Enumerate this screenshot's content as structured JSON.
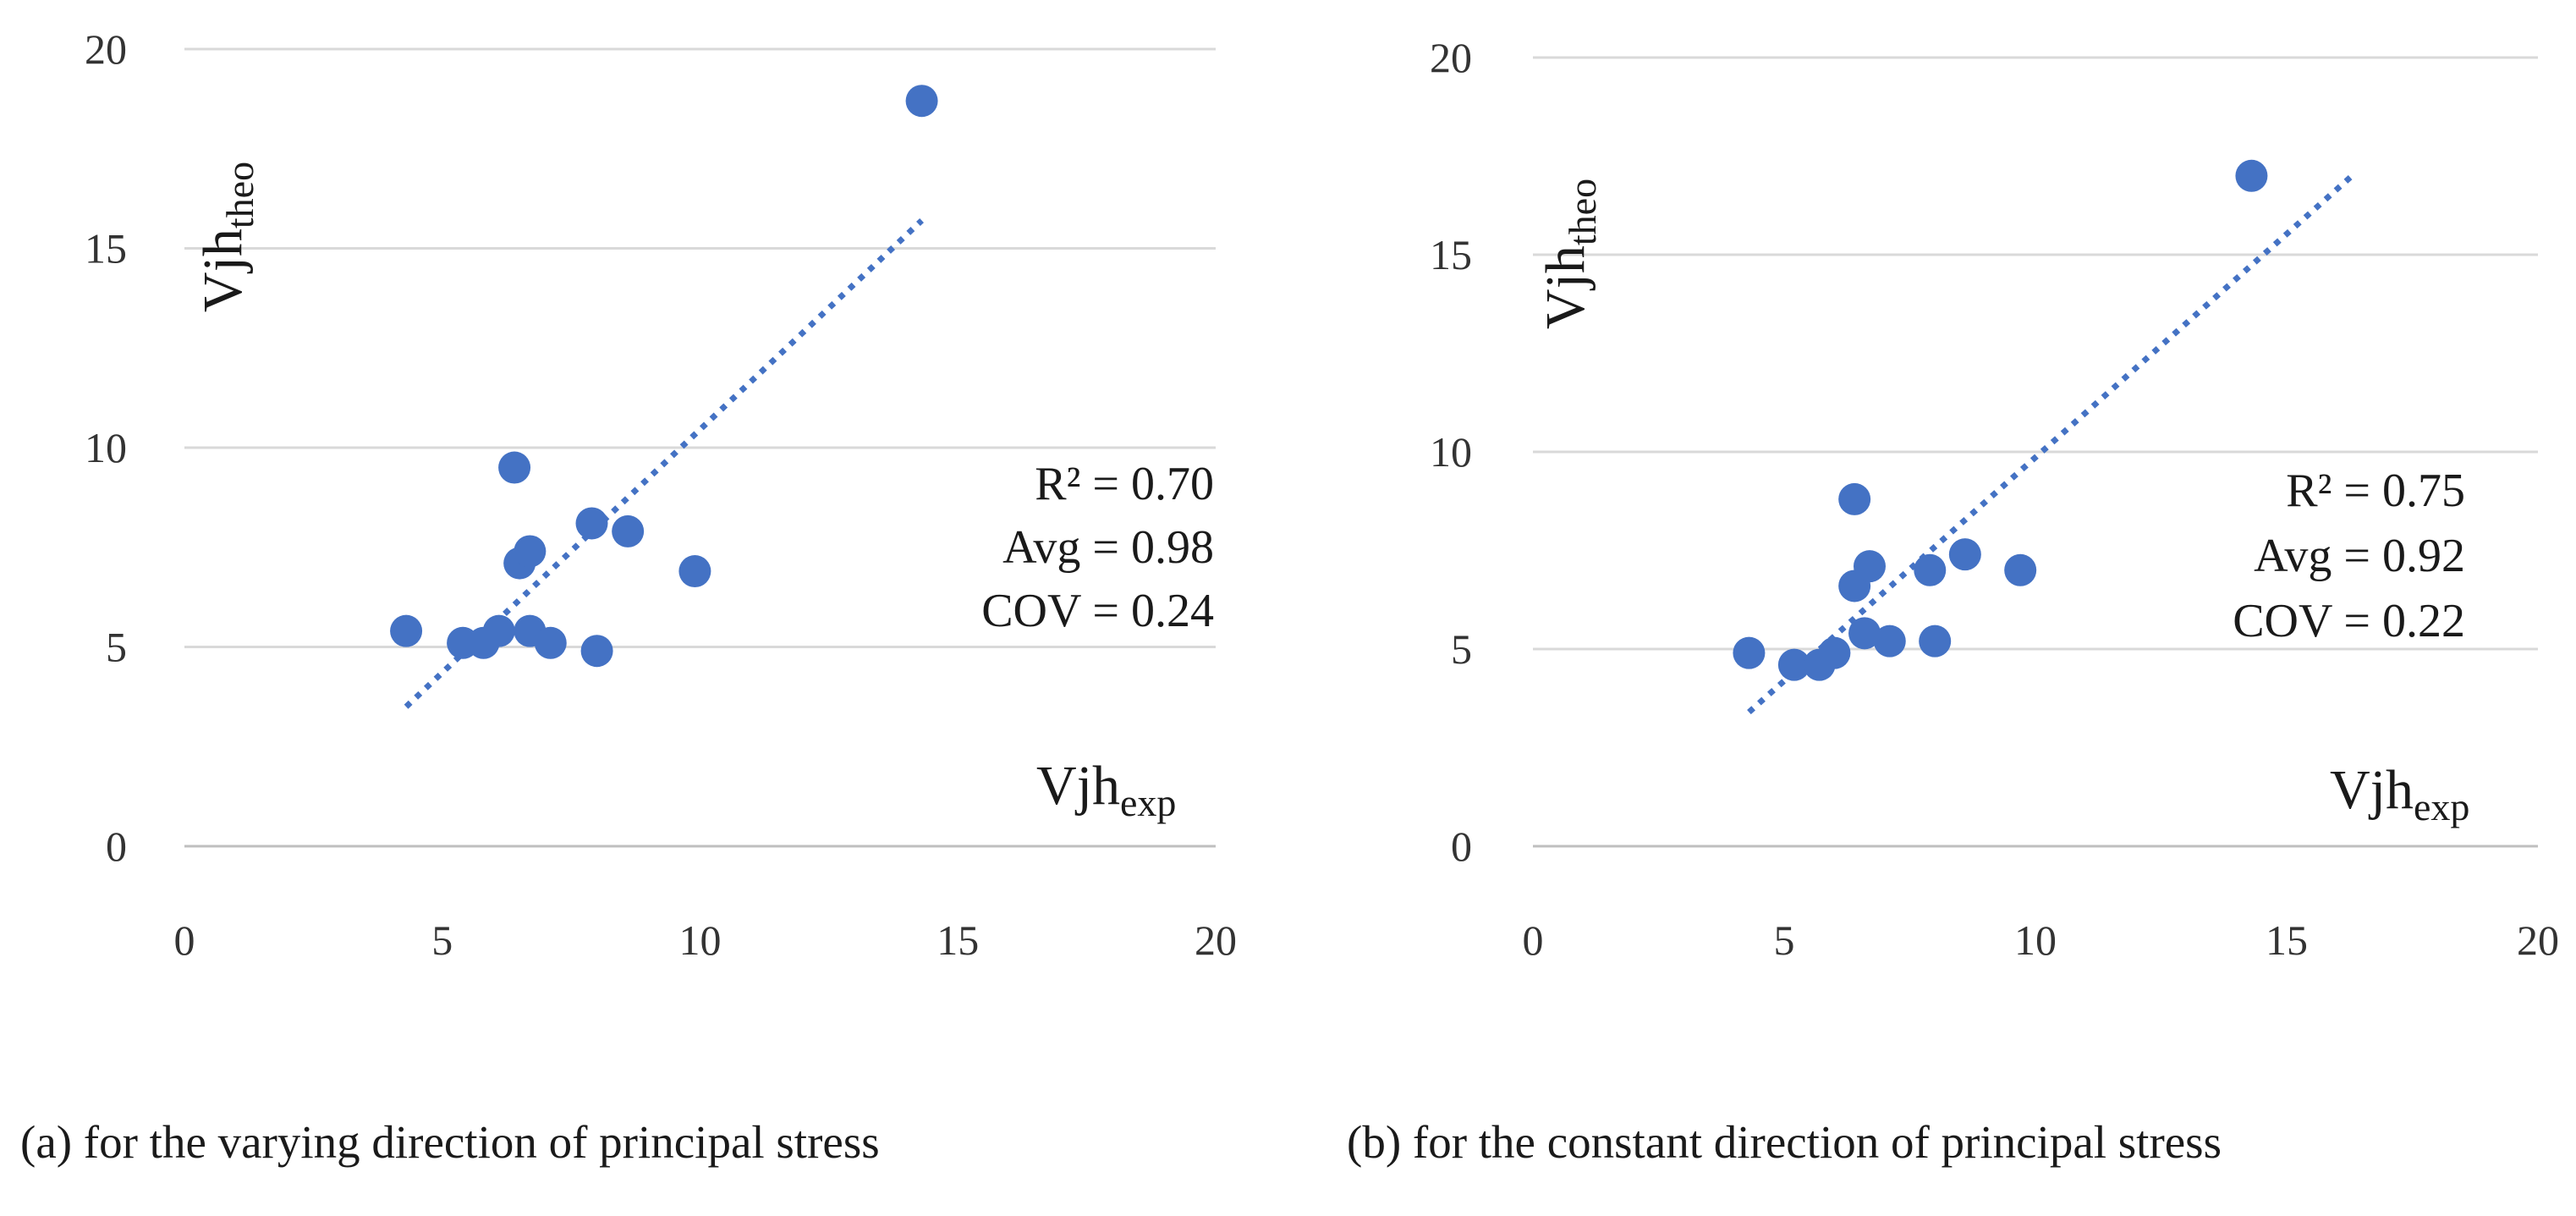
{
  "chart_data": [
    {
      "type": "scatter",
      "caption": "(a) for the varying direction of principal stress",
      "xlabel": {
        "main": "Vjh",
        "sub": "exp"
      },
      "ylabel": {
        "main": "Vjh",
        "sub": "theo"
      },
      "xlim": [
        0,
        20
      ],
      "ylim": [
        0,
        20
      ],
      "xticks": [
        "0",
        "5",
        "10",
        "15",
        "20"
      ],
      "yticks": [
        "0",
        "5",
        "10",
        "15",
        "20"
      ],
      "grid": "horizontal",
      "marker_color": "#4472c4",
      "trendline": {
        "x": [
          4.3,
          14.3
        ],
        "y": [
          3.5,
          15.7
        ],
        "style": "dotted"
      },
      "points": [
        {
          "x": 4.3,
          "y": 5.4
        },
        {
          "x": 5.4,
          "y": 5.1
        },
        {
          "x": 5.8,
          "y": 5.1
        },
        {
          "x": 6.1,
          "y": 5.4
        },
        {
          "x": 6.4,
          "y": 9.5
        },
        {
          "x": 6.5,
          "y": 7.1
        },
        {
          "x": 6.7,
          "y": 7.4
        },
        {
          "x": 6.7,
          "y": 5.4
        },
        {
          "x": 7.1,
          "y": 5.1
        },
        {
          "x": 7.9,
          "y": 8.1
        },
        {
          "x": 8.0,
          "y": 4.9
        },
        {
          "x": 8.6,
          "y": 7.9
        },
        {
          "x": 9.9,
          "y": 6.9
        },
        {
          "x": 14.3,
          "y": 18.7
        }
      ],
      "annotations": {
        "r2": "R² = 0.70",
        "avg": "Avg = 0.98",
        "cov": "COV = 0.24"
      }
    },
    {
      "type": "scatter",
      "caption": "(b) for the constant direction of principal stress",
      "xlabel": {
        "main": "Vjh",
        "sub": "exp"
      },
      "ylabel": {
        "main": "Vjh",
        "sub": "theo"
      },
      "xlim": [
        0,
        20
      ],
      "ylim": [
        0,
        20
      ],
      "xticks": [
        "0",
        "5",
        "10",
        "15",
        "20"
      ],
      "yticks": [
        "0",
        "5",
        "10",
        "15",
        "20"
      ],
      "grid": "horizontal",
      "marker_color": "#4472c4",
      "trendline": {
        "x": [
          4.3,
          16.3
        ],
        "y": [
          3.4,
          17.0
        ],
        "style": "dotted"
      },
      "points": [
        {
          "x": 4.3,
          "y": 4.9
        },
        {
          "x": 5.2,
          "y": 4.6
        },
        {
          "x": 5.7,
          "y": 4.6
        },
        {
          "x": 6.0,
          "y": 4.9
        },
        {
          "x": 6.4,
          "y": 8.8
        },
        {
          "x": 6.4,
          "y": 6.6
        },
        {
          "x": 6.6,
          "y": 5.4
        },
        {
          "x": 6.7,
          "y": 7.1
        },
        {
          "x": 7.1,
          "y": 5.2
        },
        {
          "x": 7.9,
          "y": 7.0
        },
        {
          "x": 8.0,
          "y": 5.2
        },
        {
          "x": 8.6,
          "y": 7.4
        },
        {
          "x": 9.7,
          "y": 7.0
        },
        {
          "x": 14.3,
          "y": 17.0
        }
      ],
      "annotations": {
        "r2": "R² = 0.75",
        "avg": "Avg = 0.92",
        "cov": "COV = 0.22"
      }
    }
  ]
}
